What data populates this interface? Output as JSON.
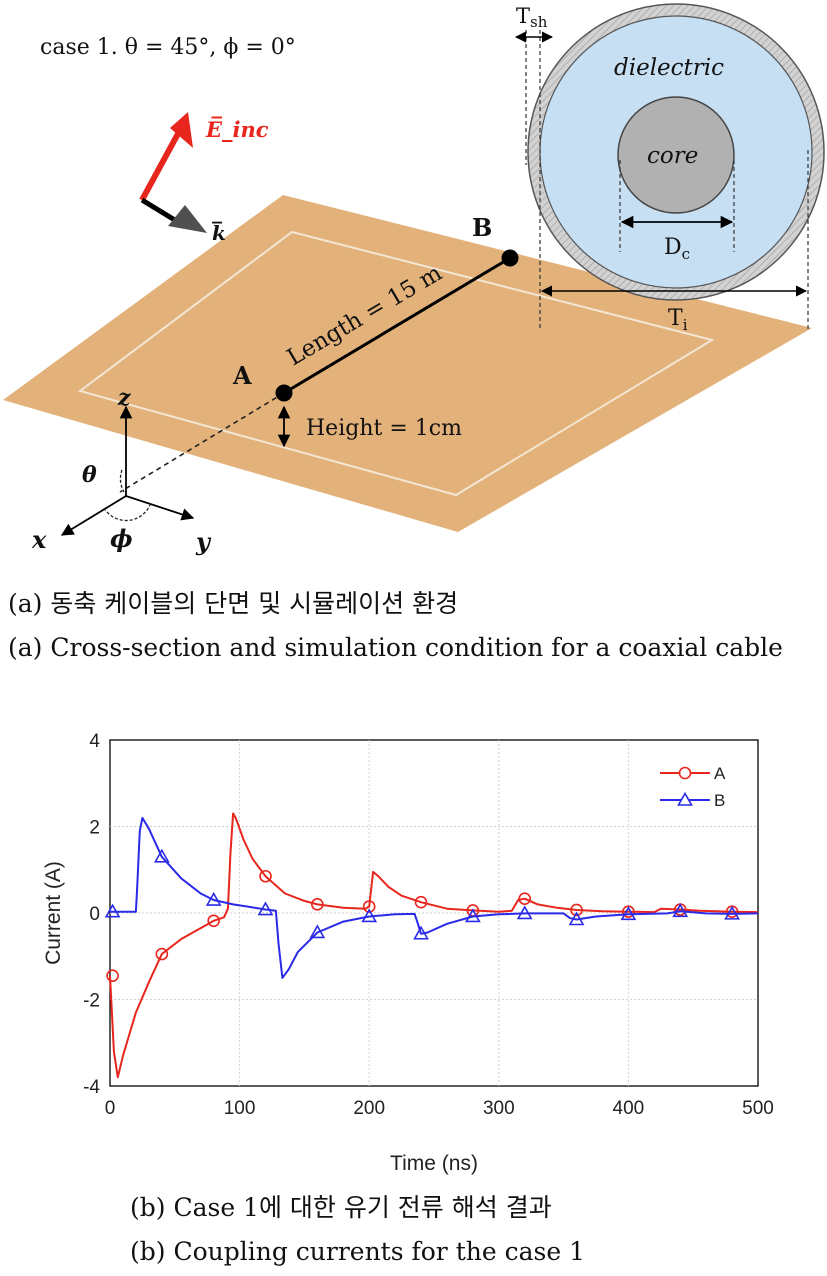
{
  "figure_a": {
    "case_label": "case 1. θ = 45°, ϕ = 0°",
    "e_inc": "E̅_inc",
    "k_vec": "k̅",
    "point_a": "A",
    "point_b": "B",
    "length": "Length = 15 m",
    "height": "Height  = 1cm",
    "axis_x": "x",
    "axis_y": "y",
    "axis_z": "z",
    "theta": "θ",
    "phi": "ϕ",
    "t_sh": "T",
    "t_sh_sub": "sh",
    "dielectric": "dielectric",
    "core": "core",
    "d_c": "D",
    "d_c_sub": "c",
    "t_i": "T",
    "t_i_sub": "i",
    "colors": {
      "ground": "#E3B27A",
      "dielectric": "#C7DFF3",
      "core": "#B1B1B1",
      "shield": "#CFCFCF",
      "e_field": "#E8261D"
    }
  },
  "caption_a_kr": "(a) 동축 케이블의 단면 및 시뮬레이션 환경",
  "caption_a_en": "(a) Cross-section and simulation condition for a coaxial cable",
  "caption_b_kr": "(b) Case 1에 대한 유기 전류 해석 결과",
  "caption_b_en": "(b) Coupling currents for the case 1",
  "chart_data": {
    "type": "line",
    "xlabel": "Time (ns)",
    "ylabel": "Current (A)",
    "xlim": [
      0,
      500
    ],
    "ylim": [
      -4,
      4
    ],
    "xticks": [
      0,
      100,
      200,
      300,
      400,
      500
    ],
    "yticks": [
      -4,
      -2,
      0,
      2,
      4
    ],
    "grid": true,
    "legend_position": "top-right",
    "series": [
      {
        "name": "A",
        "color": "#E8261D",
        "marker": "circle",
        "points": [
          [
            0,
            -1.45
          ],
          [
            3,
            -3.2
          ],
          [
            6,
            -3.8
          ],
          [
            10,
            -3.3
          ],
          [
            20,
            -2.3
          ],
          [
            30,
            -1.6
          ],
          [
            40,
            -0.95
          ],
          [
            55,
            -0.6
          ],
          [
            70,
            -0.35
          ],
          [
            80,
            -0.18
          ],
          [
            88,
            -0.1
          ],
          [
            91,
            0.1
          ],
          [
            93,
            1.4
          ],
          [
            95,
            2.3
          ],
          [
            97,
            2.2
          ],
          [
            103,
            1.7
          ],
          [
            110,
            1.25
          ],
          [
            120,
            0.85
          ],
          [
            135,
            0.45
          ],
          [
            150,
            0.28
          ],
          [
            160,
            0.2
          ],
          [
            180,
            0.12
          ],
          [
            197,
            0.1
          ],
          [
            200,
            0.15
          ],
          [
            203,
            0.95
          ],
          [
            207,
            0.85
          ],
          [
            215,
            0.6
          ],
          [
            225,
            0.4
          ],
          [
            240,
            0.25
          ],
          [
            260,
            0.1
          ],
          [
            280,
            0.06
          ],
          [
            300,
            0.03
          ],
          [
            310,
            0.05
          ],
          [
            315,
            0.3
          ],
          [
            320,
            0.33
          ],
          [
            330,
            0.2
          ],
          [
            345,
            0.12
          ],
          [
            360,
            0.07
          ],
          [
            380,
            0.04
          ],
          [
            400,
            0.03
          ],
          [
            420,
            0.02
          ],
          [
            425,
            0.1
          ],
          [
            440,
            0.08
          ],
          [
            455,
            0.05
          ],
          [
            480,
            0.03
          ],
          [
            500,
            0.02
          ]
        ],
        "markers": [
          [
            2,
            -1.45
          ],
          [
            40,
            -0.95
          ],
          [
            80,
            -0.18
          ],
          [
            120,
            0.85
          ],
          [
            160,
            0.2
          ],
          [
            200,
            0.15
          ],
          [
            240,
            0.25
          ],
          [
            280,
            0.06
          ],
          [
            320,
            0.33
          ],
          [
            360,
            0.07
          ],
          [
            400,
            0.03
          ],
          [
            440,
            0.08
          ],
          [
            480,
            0.03
          ]
        ]
      },
      {
        "name": "B",
        "color": "#2A2AE8",
        "marker": "triangle",
        "points": [
          [
            0,
            0.03
          ],
          [
            20,
            0.03
          ],
          [
            21,
            0.6
          ],
          [
            23,
            1.9
          ],
          [
            25,
            2.2
          ],
          [
            30,
            1.95
          ],
          [
            40,
            1.3
          ],
          [
            55,
            0.8
          ],
          [
            70,
            0.45
          ],
          [
            80,
            0.3
          ],
          [
            95,
            0.2
          ],
          [
            110,
            0.13
          ],
          [
            120,
            0.08
          ],
          [
            128,
            0.05
          ],
          [
            130,
            -0.7
          ],
          [
            133,
            -1.5
          ],
          [
            138,
            -1.3
          ],
          [
            145,
            -0.9
          ],
          [
            160,
            -0.45
          ],
          [
            180,
            -0.2
          ],
          [
            200,
            -0.08
          ],
          [
            220,
            -0.03
          ],
          [
            235,
            -0.02
          ],
          [
            237,
            -0.2
          ],
          [
            240,
            -0.48
          ],
          [
            245,
            -0.45
          ],
          [
            260,
            -0.25
          ],
          [
            280,
            -0.08
          ],
          [
            300,
            -0.03
          ],
          [
            320,
            -0.01
          ],
          [
            350,
            -0.01
          ],
          [
            355,
            -0.12
          ],
          [
            360,
            -0.15
          ],
          [
            375,
            -0.08
          ],
          [
            400,
            -0.03
          ],
          [
            430,
            -0.01
          ],
          [
            440,
            0.04
          ],
          [
            460,
            -0.01
          ],
          [
            480,
            -0.02
          ],
          [
            500,
            -0.01
          ]
        ],
        "markers": [
          [
            2,
            0.03
          ],
          [
            40,
            1.3
          ],
          [
            80,
            0.3
          ],
          [
            120,
            0.08
          ],
          [
            160,
            -0.45
          ],
          [
            200,
            -0.08
          ],
          [
            240,
            -0.48
          ],
          [
            280,
            -0.08
          ],
          [
            320,
            -0.01
          ],
          [
            360,
            -0.15
          ],
          [
            400,
            -0.03
          ],
          [
            440,
            0.04
          ],
          [
            480,
            -0.02
          ]
        ]
      }
    ]
  }
}
